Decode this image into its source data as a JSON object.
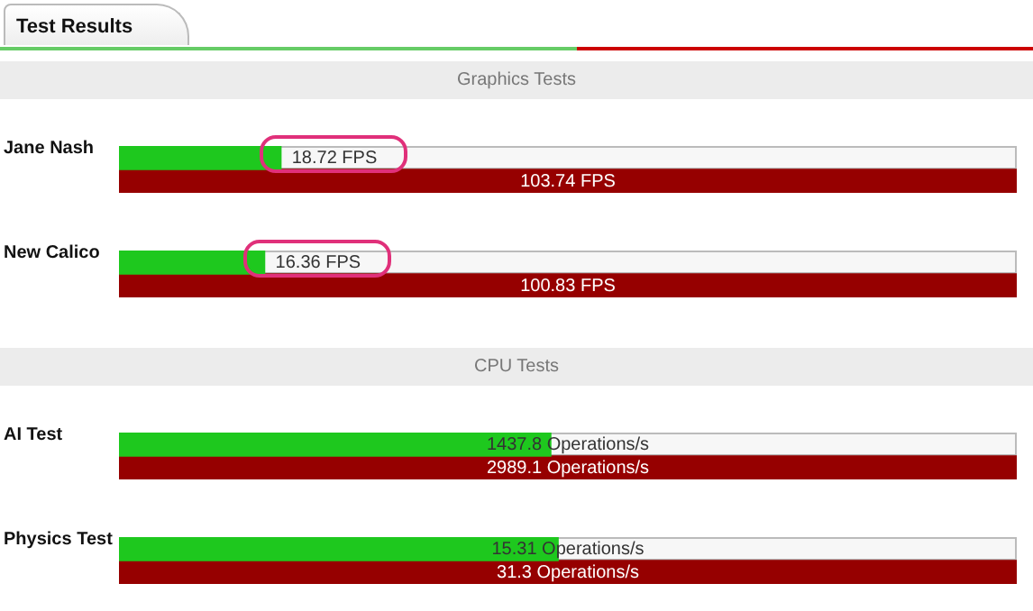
{
  "chart_data": [
    {
      "type": "bar",
      "orientation": "horizontal",
      "title": "Test Results",
      "subtitle": "Graphics Tests",
      "categories": [
        "Jane Nash"
      ],
      "tick_labels": "y",
      "series": [
        {
          "color": "#1ec81e",
          "values": [
            18.72
          ],
          "value_labels": [
            "18.72 FPS"
          ]
        },
        {
          "color": "#960000",
          "values": [
            103.74
          ],
          "value_labels": [
            "103.74 FPS"
          ]
        }
      ]
    },
    {
      "type": "bar",
      "orientation": "horizontal",
      "categories": [
        "New Calico"
      ],
      "tick_labels": "y",
      "series": [
        {
          "color": "#1ec81e",
          "values": [
            16.36
          ],
          "value_labels": [
            "16.36 FPS"
          ]
        },
        {
          "color": "#960000",
          "values": [
            100.83
          ],
          "value_labels": [
            "100.83 FPS"
          ]
        }
      ]
    },
    {
      "type": "bar",
      "orientation": "horizontal",
      "subtitle": "CPU Tests",
      "categories": [
        "AI Test"
      ],
      "tick_labels": "y",
      "series": [
        {
          "color": "#1ec81e",
          "values": [
            1437.8
          ],
          "value_labels": [
            "1437.8 Operations/s"
          ]
        },
        {
          "color": "#960000",
          "values": [
            2989.1
          ],
          "value_labels": [
            "2989.1 Operations/s"
          ]
        }
      ]
    },
    {
      "type": "bar",
      "orientation": "horizontal",
      "categories": [
        "Physics Test"
      ],
      "tick_labels": "y",
      "series": [
        {
          "color": "#1ec81e",
          "values": [
            15.31
          ],
          "value_labels": [
            "15.31 Operations/s"
          ]
        },
        {
          "color": "#960000",
          "values": [
            31.3
          ],
          "value_labels": [
            "31.3 Operations/s"
          ]
        }
      ]
    }
  ]
}
